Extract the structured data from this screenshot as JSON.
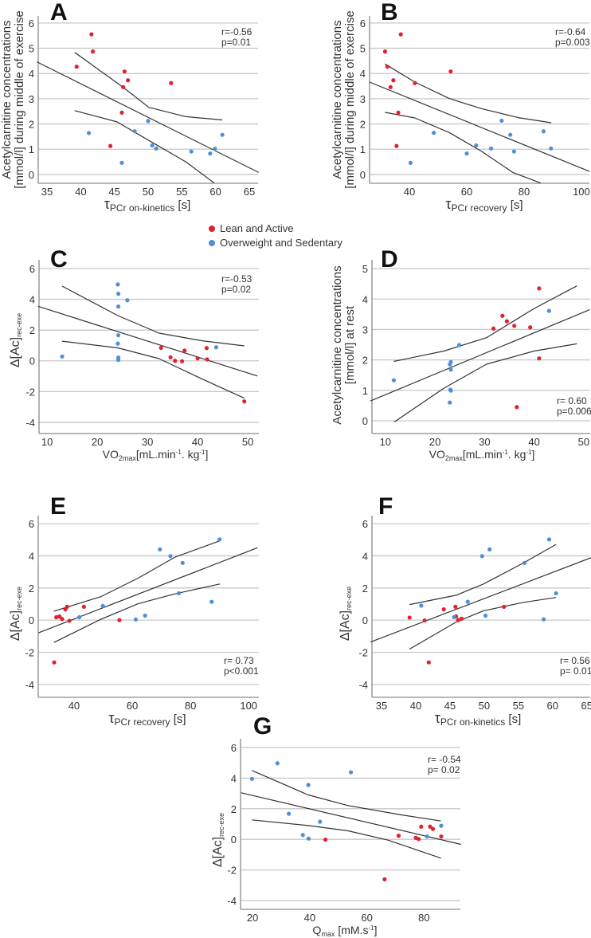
{
  "legend": [
    {
      "label": "Lean and Active",
      "color": "#e3202f"
    },
    {
      "label": "Overweight and Sedentary",
      "color": "#4f8fd6"
    }
  ],
  "colors": {
    "grid": "#c8c8c8",
    "axis": "#8a8a8a",
    "fit": "#333333"
  },
  "chart_data": [
    {
      "panel": "A",
      "type": "scatter",
      "ylabel_lines": [
        "Acetylcarnitine concentrations",
        "[mmol/l] during middle of exercise"
      ],
      "xlabel": [
        {
          "t": "τ",
          "s": "greek"
        },
        {
          "t": "PCr on-kinetics",
          "s": "sub"
        },
        {
          "t": " [s]"
        }
      ],
      "stats": [
        "r=-0.56",
        "p=0.01"
      ],
      "stats_pos": "top-right",
      "xlim": [
        33.7,
        66.3
      ],
      "ylim": [
        -0.35,
        6.28
      ],
      "xticks": [
        35,
        40,
        45,
        50,
        55,
        60,
        65
      ],
      "yticks": [
        0,
        1,
        2,
        3,
        4,
        5,
        6
      ],
      "lean": [
        [
          41.6,
          5.55
        ],
        [
          41.8,
          4.87
        ],
        [
          39.4,
          4.27
        ],
        [
          46.5,
          4.08
        ],
        [
          47.0,
          3.73
        ],
        [
          46.3,
          3.46
        ],
        [
          53.4,
          3.62
        ],
        [
          46.1,
          2.45
        ],
        [
          44.4,
          1.13
        ]
      ],
      "overweight": [
        [
          41.2,
          1.64
        ],
        [
          50.0,
          2.12
        ],
        [
          48.0,
          1.71
        ],
        [
          50.6,
          1.15
        ],
        [
          51.2,
          1.03
        ],
        [
          46.1,
          0.46
        ],
        [
          56.4,
          0.91
        ],
        [
          59.2,
          0.83
        ],
        [
          59.9,
          1.02
        ],
        [
          61.0,
          1.57
        ]
      ],
      "fit": [
        [
          33.5,
          4.46
        ],
        [
          66.4,
          0.08
        ]
      ],
      "ci_upper": [
        [
          39.1,
          4.84
        ],
        [
          46.3,
          3.45
        ],
        [
          50.1,
          2.66
        ],
        [
          55.6,
          2.29
        ],
        [
          61.0,
          2.16
        ]
      ],
      "ci_lower": [
        [
          39.1,
          2.53
        ],
        [
          45.4,
          2.08
        ],
        [
          50.1,
          1.35
        ],
        [
          55.6,
          0.5
        ],
        [
          59.8,
          -0.34
        ]
      ]
    },
    {
      "panel": "B",
      "type": "scatter",
      "ylabel_lines": [
        "Acetylcarnitine concentrations",
        "[mmol/l] during middle of exercise"
      ],
      "xlabel": [
        {
          "t": "τ",
          "s": "greek"
        },
        {
          "t": "PCr recovery",
          "s": "sub"
        },
        {
          "t": " [s]"
        }
      ],
      "stats": [
        "r=-0.64",
        "p=0.003"
      ],
      "stats_pos": "top-right",
      "xlim": [
        26.1,
        102.8
      ],
      "ylim": [
        -0.35,
        6.28
      ],
      "xticks": [
        40,
        60,
        80,
        100
      ],
      "yticks": [
        0,
        1,
        2,
        3,
        4,
        5,
        6
      ],
      "lean": [
        [
          31.5,
          4.87
        ],
        [
          37.0,
          5.55
        ],
        [
          32.3,
          4.27
        ],
        [
          34.4,
          3.73
        ],
        [
          33.4,
          3.46
        ],
        [
          41.9,
          3.62
        ],
        [
          54.4,
          4.08
        ],
        [
          36.1,
          2.45
        ],
        [
          35.5,
          1.13
        ]
      ],
      "overweight": [
        [
          48.5,
          1.65
        ],
        [
          40.4,
          0.46
        ],
        [
          60.0,
          0.83
        ],
        [
          63.3,
          1.15
        ],
        [
          68.5,
          1.03
        ],
        [
          72.2,
          2.13
        ],
        [
          75.2,
          1.57
        ],
        [
          76.5,
          0.91
        ],
        [
          86.8,
          1.71
        ],
        [
          89.4,
          1.03
        ]
      ],
      "fit": [
        [
          26.1,
          3.66
        ],
        [
          102.8,
          0.12
        ]
      ],
      "ci_upper": [
        [
          31.5,
          4.38
        ],
        [
          41.9,
          3.66
        ],
        [
          53.9,
          3.01
        ],
        [
          65.0,
          2.61
        ],
        [
          78.0,
          2.25
        ],
        [
          89.5,
          2.05
        ]
      ],
      "ci_lower": [
        [
          31.5,
          2.46
        ],
        [
          41.9,
          2.24
        ],
        [
          53.9,
          1.66
        ],
        [
          65.0,
          0.93
        ],
        [
          76.1,
          0.08
        ],
        [
          85.8,
          -0.34
        ]
      ]
    },
    {
      "panel": "C",
      "type": "scatter",
      "ylabel_parts": [
        {
          "t": "Δ[Ac]"
        },
        {
          "t": "rec-exe",
          "s": "sub"
        }
      ],
      "xlabel": [
        {
          "t": "VO"
        },
        {
          "t": "2max",
          "s": "sub"
        },
        {
          "t": "[mL.min"
        },
        {
          "t": "-1",
          "s": "sup"
        },
        {
          "t": ". kg"
        },
        {
          "t": "-1",
          "s": "sup"
        },
        {
          "t": "]"
        }
      ],
      "stats": [
        "r=-0.53",
        "p=0.02"
      ],
      "stats_pos": "top-right",
      "xlim": [
        8.4,
        52.2
      ],
      "ylim": [
        -4.73,
        6.57
      ],
      "xticks": [
        10,
        20,
        30,
        40,
        50
      ],
      "yticks": [
        -4,
        -2,
        0,
        2,
        4,
        6
      ],
      "lean": [
        [
          32.7,
          0.84
        ],
        [
          34.6,
          0.23
        ],
        [
          35.5,
          0.0
        ],
        [
          36.9,
          -0.03
        ],
        [
          37.4,
          0.67
        ],
        [
          40.0,
          0.16
        ],
        [
          41.8,
          0.83
        ],
        [
          41.9,
          0.09
        ],
        [
          49.3,
          -2.64
        ]
      ],
      "overweight": [
        [
          13.0,
          0.28
        ],
        [
          24.1,
          4.97
        ],
        [
          24.2,
          4.36
        ],
        [
          24.2,
          3.53
        ],
        [
          26.0,
          3.94
        ],
        [
          24.2,
          1.66
        ],
        [
          24.1,
          1.12
        ],
        [
          24.2,
          0.21
        ],
        [
          24.2,
          0.06
        ],
        [
          43.7,
          0.88
        ]
      ],
      "fit": [
        [
          8.2,
          3.55
        ],
        [
          51.9,
          -0.99
        ]
      ],
      "ci_upper": [
        [
          13.0,
          4.86
        ],
        [
          24.1,
          2.94
        ],
        [
          32.3,
          1.8
        ],
        [
          40.8,
          1.31
        ],
        [
          49.3,
          0.97
        ]
      ],
      "ci_lower": [
        [
          13.0,
          1.28
        ],
        [
          24.1,
          0.84
        ],
        [
          32.3,
          0.14
        ],
        [
          40.8,
          -1.17
        ],
        [
          49.3,
          -2.43
        ]
      ]
    },
    {
      "panel": "D",
      "type": "scatter",
      "ylabel_lines": [
        "Acetylcarnitine concentrations",
        "[mmol/l] at rest"
      ],
      "xlabel": [
        {
          "t": "VO"
        },
        {
          "t": "2max",
          "s": "sub"
        },
        {
          "t": "[mL.min"
        },
        {
          "t": "-1",
          "s": "sup"
        },
        {
          "t": ". kg"
        },
        {
          "t": "-1",
          "s": "sup"
        },
        {
          "t": "]"
        }
      ],
      "stats": [
        "r= 0.60",
        "p=0.006"
      ],
      "stats_pos": "bottom-right",
      "xlim": [
        7.3,
        51.3
      ],
      "ylim": [
        -0.42,
        5.29
      ],
      "xticks": [
        10,
        20,
        30,
        40,
        50
      ],
      "yticks": [
        0,
        1,
        2,
        3,
        4,
        5
      ],
      "lean": [
        [
          31.8,
          3.03
        ],
        [
          33.6,
          3.45
        ],
        [
          34.5,
          3.27
        ],
        [
          36.0,
          3.12
        ],
        [
          39.2,
          3.07
        ],
        [
          41.0,
          4.35
        ],
        [
          41.0,
          2.05
        ],
        [
          36.5,
          0.45
        ]
      ],
      "overweight": [
        [
          11.7,
          1.33
        ],
        [
          23.2,
          1.93
        ],
        [
          23.0,
          1.85
        ],
        [
          23.2,
          1.68
        ],
        [
          23.1,
          1.02
        ],
        [
          23.2,
          0.99
        ],
        [
          23.0,
          0.6
        ],
        [
          24.9,
          2.49
        ],
        [
          43.0,
          3.61
        ]
      ],
      "fit": [
        [
          7.0,
          0.65
        ],
        [
          51.2,
          3.65
        ]
      ],
      "ci_upper": [
        [
          11.7,
          1.95
        ],
        [
          21.8,
          2.29
        ],
        [
          30.4,
          2.73
        ],
        [
          40.0,
          3.69
        ],
        [
          48.6,
          4.43
        ]
      ],
      "ci_lower": [
        [
          11.8,
          -0.04
        ],
        [
          21.8,
          1.07
        ],
        [
          30.4,
          1.86
        ],
        [
          40.0,
          2.29
        ],
        [
          48.6,
          2.53
        ]
      ]
    },
    {
      "panel": "E",
      "type": "scatter",
      "ylabel_parts": [
        {
          "t": "Δ[Ac]"
        },
        {
          "t": "rec-exe",
          "s": "sub"
        }
      ],
      "xlabel": [
        {
          "t": "τ",
          "s": "greek"
        },
        {
          "t": "PCr recovery",
          "s": "sub"
        },
        {
          "t": " [s]"
        }
      ],
      "stats": [
        "r= 0.73",
        "p<0.001"
      ],
      "stats_pos": "bottom-right",
      "xlim": [
        27.7,
        103.5
      ],
      "ylim": [
        -4.8,
        6.5
      ],
      "xticks": [
        40,
        60,
        80,
        100
      ],
      "yticks": [
        -4,
        -2,
        0,
        2,
        4,
        6
      ],
      "lean": [
        [
          33.9,
          0.18
        ],
        [
          35.0,
          0.23
        ],
        [
          35.9,
          0.07
        ],
        [
          37.0,
          0.67
        ],
        [
          37.6,
          0.83
        ],
        [
          38.4,
          -0.04
        ],
        [
          43.4,
          0.83
        ],
        [
          55.6,
          0.0
        ],
        [
          33.2,
          -2.63
        ]
      ],
      "overweight": [
        [
          41.8,
          0.18
        ],
        [
          49.9,
          0.88
        ],
        [
          61.2,
          0.04
        ],
        [
          64.4,
          0.28
        ],
        [
          69.5,
          4.4
        ],
        [
          73.1,
          3.98
        ],
        [
          77.3,
          3.56
        ],
        [
          76.0,
          1.67
        ],
        [
          87.3,
          1.14
        ],
        [
          90.0,
          5.02
        ]
      ],
      "fit": [
        [
          27.8,
          -0.79
        ],
        [
          103.1,
          4.51
        ]
      ],
      "ci_upper": [
        [
          33.1,
          0.56
        ],
        [
          49.2,
          1.46
        ],
        [
          62.0,
          2.61
        ],
        [
          74.8,
          3.93
        ],
        [
          90.1,
          4.93
        ]
      ],
      "ci_lower": [
        [
          33.1,
          -1.39
        ],
        [
          49.2,
          0.05
        ],
        [
          62.0,
          1.02
        ],
        [
          74.8,
          1.64
        ],
        [
          90.1,
          2.25
        ]
      ]
    },
    {
      "panel": "F",
      "type": "scatter",
      "ylabel_parts": [
        {
          "t": "Δ[Ac]"
        },
        {
          "t": "rec-exe",
          "s": "sub"
        }
      ],
      "xlabel": [
        {
          "t": "τ",
          "s": "greek"
        },
        {
          "t": "PCr on-kinetics",
          "s": "sub"
        },
        {
          "t": " [s]"
        }
      ],
      "stats": [
        "r= 0.56",
        "p= 0.01"
      ],
      "stats_pos": "bottom-right",
      "xlim": [
        33.6,
        65.5
      ],
      "ylim": [
        -4.8,
        6.5
      ],
      "xticks": [
        35,
        40,
        45,
        50,
        55,
        60,
        65
      ],
      "yticks": [
        -4,
        -2,
        0,
        2,
        4,
        6
      ],
      "lean": [
        [
          39.1,
          0.16
        ],
        [
          41.3,
          -0.02
        ],
        [
          44.1,
          0.67
        ],
        [
          45.8,
          0.83
        ],
        [
          45.9,
          0.23
        ],
        [
          46.2,
          0.0
        ],
        [
          46.7,
          0.09
        ],
        [
          52.9,
          0.83
        ],
        [
          41.9,
          -2.63
        ]
      ],
      "overweight": [
        [
          40.8,
          0.9
        ],
        [
          45.6,
          0.19
        ],
        [
          47.6,
          1.14
        ],
        [
          49.7,
          3.98
        ],
        [
          50.2,
          0.28
        ],
        [
          50.8,
          4.4
        ],
        [
          55.9,
          3.56
        ],
        [
          58.7,
          0.05
        ],
        [
          59.5,
          5.02
        ],
        [
          60.5,
          1.67
        ]
      ],
      "fit": [
        [
          33.4,
          -1.36
        ],
        [
          65.9,
          3.93
        ]
      ],
      "ci_upper": [
        [
          39.1,
          0.97
        ],
        [
          45.9,
          1.55
        ],
        [
          49.9,
          2.25
        ],
        [
          55.8,
          3.57
        ],
        [
          60.5,
          4.71
        ]
      ],
      "ci_lower": [
        [
          39.1,
          -1.8
        ],
        [
          45.9,
          -0.12
        ],
        [
          49.9,
          0.58
        ],
        [
          55.8,
          1.11
        ],
        [
          60.5,
          1.41
        ]
      ]
    },
    {
      "panel": "G",
      "type": "scatter",
      "ylabel_parts": [
        {
          "t": "Δ[Ac]"
        },
        {
          "t": "rec-exe",
          "s": "sub"
        }
      ],
      "xlabel": [
        {
          "t": "Q"
        },
        {
          "t": "max",
          "s": "sub"
        },
        {
          "t": " [mM.s"
        },
        {
          "t": "-1",
          "s": "sup"
        },
        {
          "t": "]"
        }
      ],
      "stats": [
        "r= -0.54",
        "p= 0.02"
      ],
      "stats_pos": "top-right",
      "xlim": [
        15.8,
        92.7
      ],
      "ylim": [
        -4.57,
        6.57
      ],
      "xticks": [
        20,
        40,
        60,
        80
      ],
      "yticks": [
        -4,
        -2,
        0,
        2,
        4,
        6
      ],
      "lean": [
        [
          45.5,
          -0.02
        ],
        [
          66.2,
          -2.61
        ],
        [
          71.1,
          0.24
        ],
        [
          77.1,
          0.1
        ],
        [
          78.1,
          0.02
        ],
        [
          79.0,
          0.83
        ],
        [
          82.1,
          0.83
        ],
        [
          83.1,
          0.68
        ],
        [
          86.0,
          0.19
        ]
      ],
      "overweight": [
        [
          19.8,
          3.95
        ],
        [
          28.7,
          4.97
        ],
        [
          39.5,
          3.55
        ],
        [
          32.7,
          1.67
        ],
        [
          37.6,
          0.28
        ],
        [
          39.6,
          0.05
        ],
        [
          43.6,
          1.15
        ],
        [
          54.4,
          4.38
        ],
        [
          81.0,
          0.19
        ],
        [
          86.0,
          0.89
        ]
      ],
      "fit": [
        [
          16.0,
          3.04
        ],
        [
          92.9,
          -0.33
        ]
      ],
      "ci_upper": [
        [
          19.8,
          4.5
        ],
        [
          39.5,
          2.9
        ],
        [
          53.4,
          2.21
        ],
        [
          72.0,
          1.6
        ],
        [
          85.9,
          1.2
        ]
      ],
      "ci_lower": [
        [
          19.8,
          1.27
        ],
        [
          39.5,
          0.9
        ],
        [
          53.4,
          0.56
        ],
        [
          67.4,
          -0.05
        ],
        [
          85.9,
          -1.23
        ]
      ]
    }
  ]
}
